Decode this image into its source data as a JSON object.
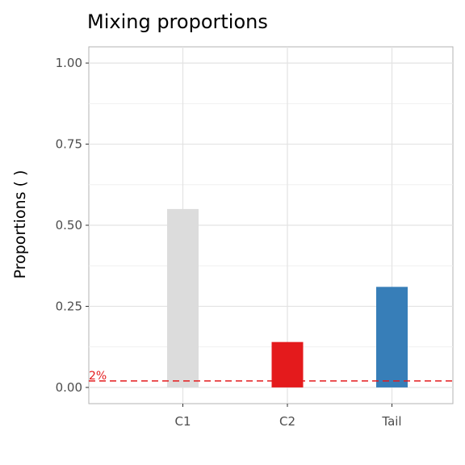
{
  "chart_data": {
    "type": "bar",
    "title": "Mixing proportions",
    "xlabel": "",
    "ylabel": "Proportions ( )",
    "categories": [
      "C1",
      "C2",
      "Tail"
    ],
    "values": [
      0.55,
      0.14,
      0.31
    ],
    "bar_colors": [
      "#dcdcdc",
      "#e41a1c",
      "#377eb8"
    ],
    "ylim": [
      -0.05,
      1.05
    ],
    "yticks": [
      0.0,
      0.25,
      0.5,
      0.75,
      1.0
    ],
    "ytick_labels": [
      "0.00",
      "0.25",
      "0.50",
      "0.75",
      "1.00"
    ],
    "grid": true,
    "reference_line": {
      "value": 0.02,
      "label": "2%",
      "color": "#e41a1c",
      "style": "dashed"
    }
  }
}
